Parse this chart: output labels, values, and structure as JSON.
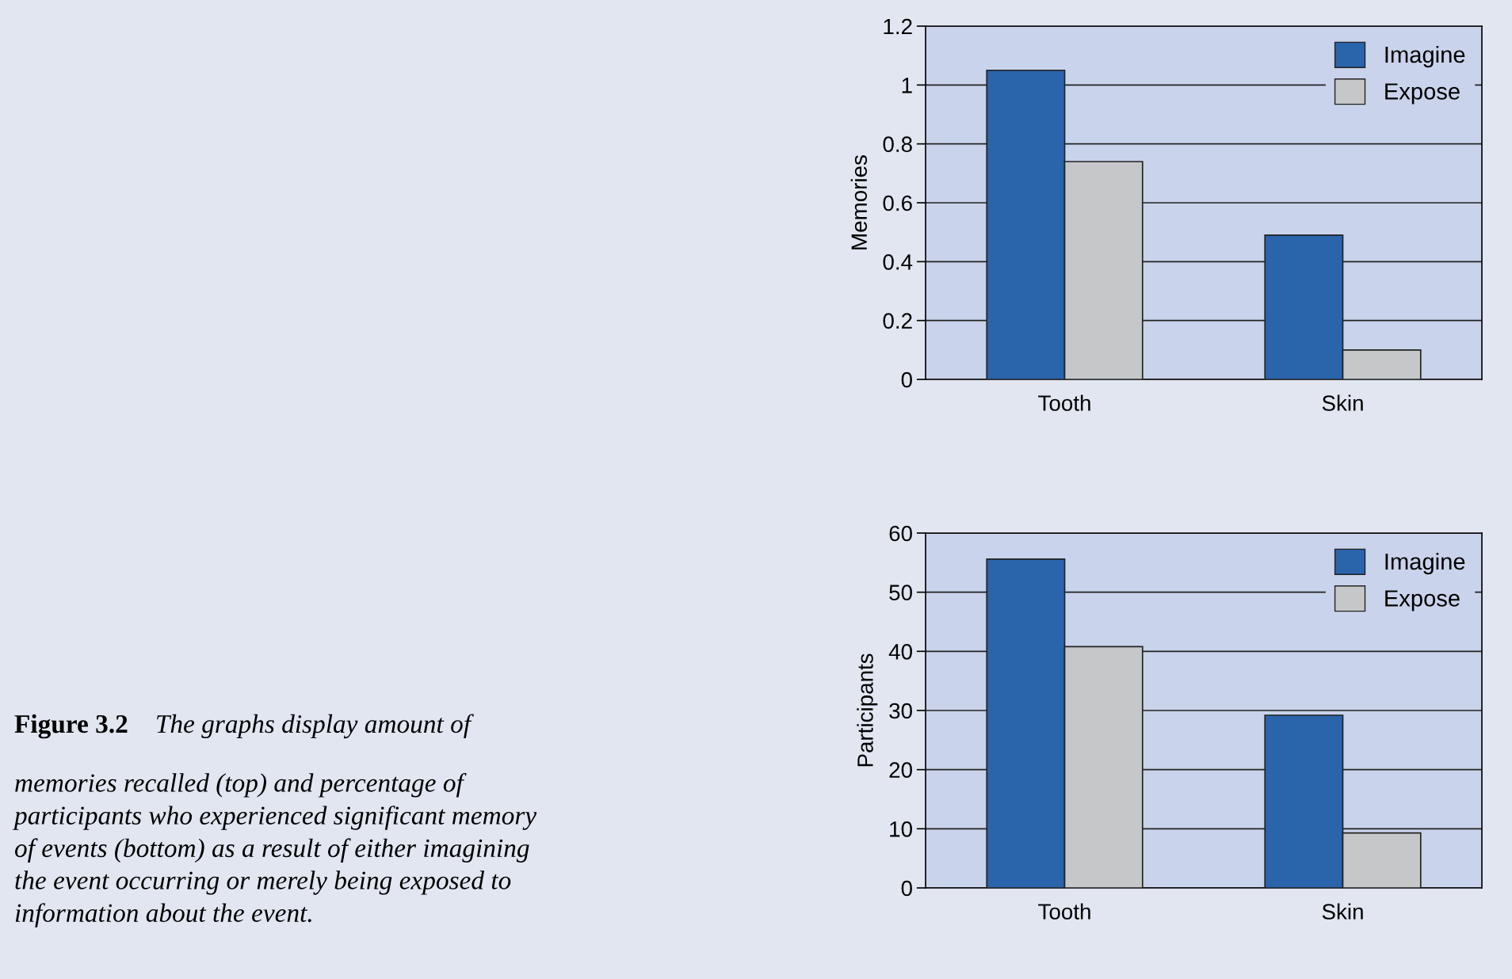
{
  "chart_data": [
    {
      "type": "bar",
      "categories": [
        "Tooth",
        "Skin"
      ],
      "ylabel": "Memories",
      "ylim": [
        0,
        1.2
      ],
      "yticks": [
        0,
        0.2,
        0.4,
        0.6,
        0.8,
        1,
        1.2
      ],
      "grid": "y",
      "legend": "top right",
      "series": [
        {
          "name": "Imagine",
          "color": "#2a64ab",
          "values": [
            1.05,
            0.49
          ]
        },
        {
          "name": "Expose",
          "color": "#c6c7c9",
          "values": [
            0.74,
            0.1
          ]
        }
      ],
      "annotations": [
        "Figure 3.2",
        "The graphs display amount of\nmemories recalled (top) and percentage of\nparticipants who experienced significant memory\nof events (bottom) as a result of either imagining\nthe event occurring or merely being exposed to\ninformation about the event."
      ]
    },
    {
      "type": "bar",
      "categories": [
        "Tooth",
        "Skin"
      ],
      "ylabel": "Participants",
      "ylim": [
        0,
        60
      ],
      "yticks": [
        0,
        10,
        20,
        30,
        40,
        50,
        60
      ],
      "grid": "y",
      "legend": "top right",
      "series": [
        {
          "name": "Imagine",
          "color": "#2a64ab",
          "values": [
            55.6,
            29.2
          ]
        },
        {
          "name": "Expose",
          "color": "#c6c7c9",
          "values": [
            40.8,
            9.3
          ]
        }
      ]
    }
  ]
}
